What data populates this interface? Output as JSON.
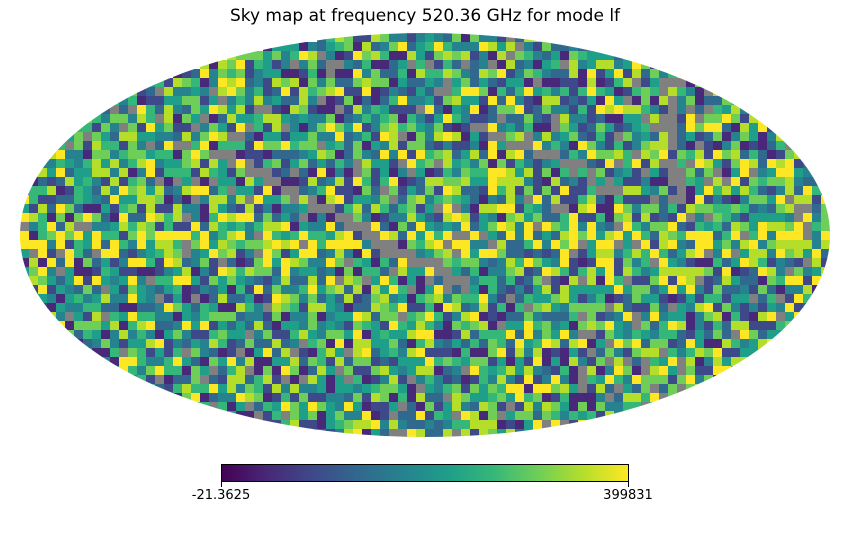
{
  "chart_data": {
    "type": "heatmap",
    "title": "Sky map at frequency 520.36 GHz for mode lf",
    "projection": "mollweide",
    "colormap": "viridis",
    "colorbar": {
      "orientation": "horizontal",
      "min_label": "-21.3625",
      "max_label": "399831",
      "min": -21.3625,
      "max": 399831
    },
    "missing_color": "#808080",
    "colors": {
      "viridis": [
        "#440154",
        "#482878",
        "#3e4989",
        "#31688e",
        "#26828e",
        "#1f9e89",
        "#35b779",
        "#6ece58",
        "#b5de2b",
        "#fde725"
      ]
    }
  }
}
